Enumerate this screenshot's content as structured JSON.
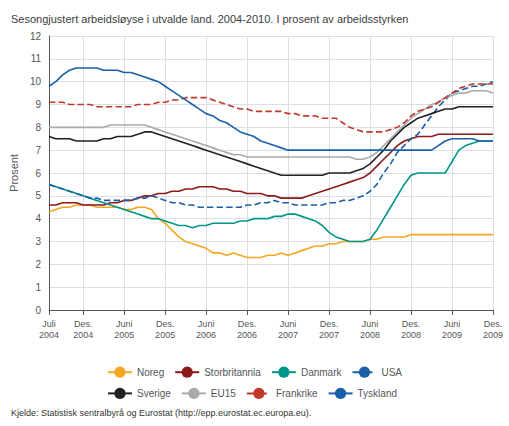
{
  "chart_data": {
    "type": "line",
    "title": "Sesongjustert arbeidsløyse i utvalde land. 2004-2010. I prosent av arbeidsstyrken",
    "y_label": "Prosent",
    "annotations": [
      "Kjelde: Statistisk sentralbyrå og Eurostat (http://epp.eurostat.ec.europa.eu)."
    ],
    "categories": [
      "Juli\n2004",
      null,
      null,
      null,
      null,
      "Des.\n2004",
      null,
      null,
      null,
      null,
      null,
      "Juni\n2005",
      null,
      null,
      null,
      null,
      null,
      "Des.\n2005",
      null,
      null,
      null,
      null,
      null,
      "Juni\n2006",
      null,
      null,
      null,
      null,
      null,
      "Des.\n2006",
      null,
      null,
      null,
      null,
      null,
      "Juni\n2007",
      null,
      null,
      null,
      null,
      null,
      "Des.\n2007",
      null,
      null,
      null,
      null,
      null,
      "Juni\n2008",
      null,
      null,
      null,
      null,
      null,
      "Des.\n2008",
      null,
      null,
      null,
      null,
      null,
      "Juni\n2009",
      null,
      null,
      null,
      null,
      null,
      "Des.\n2009"
    ],
    "ylim": [
      0,
      12
    ],
    "yticks": [
      0,
      1,
      2,
      3,
      4,
      5,
      6,
      7,
      8,
      9,
      10,
      11,
      12
    ],
    "grid": true,
    "legend": "bottom",
    "series": [
      {
        "name": "Noreg",
        "color": "#f5a623",
        "line_style": "solid",
        "values": [
          4.3,
          4.4,
          4.5,
          4.5,
          4.6,
          4.6,
          4.6,
          4.5,
          4.5,
          4.5,
          4.5,
          4.4,
          4.4,
          4.5,
          4.5,
          4.4,
          4.0,
          3.8,
          3.5,
          3.2,
          3.0,
          2.9,
          2.8,
          2.7,
          2.5,
          2.5,
          2.4,
          2.5,
          2.4,
          2.3,
          2.3,
          2.3,
          2.4,
          2.4,
          2.5,
          2.4,
          2.5,
          2.6,
          2.7,
          2.8,
          2.8,
          2.9,
          2.9,
          3.0,
          3.0,
          3.0,
          3.0,
          3.1,
          3.1,
          3.2,
          3.2,
          3.2,
          3.2,
          3.3,
          3.3,
          3.3,
          3.3,
          3.3,
          3.3,
          3.3,
          3.3,
          3.3,
          3.3,
          3.3,
          3.3,
          3.3
        ]
      },
      {
        "name": "Storbritannia",
        "color": "#8B1a1a",
        "line_style": "solid",
        "values": [
          4.6,
          4.6,
          4.7,
          4.7,
          4.7,
          4.6,
          4.6,
          4.6,
          4.6,
          4.7,
          4.7,
          4.8,
          4.8,
          4.9,
          5.0,
          5.0,
          5.1,
          5.1,
          5.2,
          5.2,
          5.3,
          5.3,
          5.4,
          5.4,
          5.4,
          5.3,
          5.3,
          5.2,
          5.2,
          5.1,
          5.1,
          5.1,
          5.0,
          5.0,
          4.9,
          4.9,
          4.9,
          4.9,
          5.0,
          5.1,
          5.2,
          5.3,
          5.4,
          5.5,
          5.6,
          5.7,
          5.8,
          6.0,
          6.3,
          6.6,
          6.9,
          7.2,
          7.4,
          7.5,
          7.6,
          7.6,
          7.6,
          7.7,
          7.7,
          7.7,
          7.7,
          7.7,
          7.7,
          7.7,
          7.7,
          7.7
        ]
      },
      {
        "name": "Danmark",
        "color": "#009688",
        "line_style": "solid",
        "values": [
          5.5,
          5.4,
          5.3,
          5.2,
          5.1,
          5.0,
          4.9,
          4.8,
          4.7,
          4.6,
          4.5,
          4.4,
          4.3,
          4.2,
          4.1,
          4.0,
          4.0,
          3.9,
          3.8,
          3.7,
          3.7,
          3.6,
          3.7,
          3.7,
          3.8,
          3.8,
          3.8,
          3.8,
          3.9,
          3.9,
          4.0,
          4.0,
          4.0,
          4.1,
          4.1,
          4.2,
          4.2,
          4.1,
          4.0,
          3.9,
          3.7,
          3.4,
          3.2,
          3.1,
          3.0,
          3.0,
          3.0,
          3.1,
          3.5,
          4.0,
          4.5,
          5.0,
          5.5,
          5.9,
          6.0,
          6.0,
          6.0,
          6.0,
          6.0,
          6.5,
          7.0,
          7.2,
          7.3,
          7.4,
          7.4,
          7.4
        ]
      },
      {
        "name": "USA",
        "color": "#1a5fa8",
        "line_style": "dashed",
        "values": [
          5.5,
          5.4,
          5.3,
          5.2,
          5.1,
          5.0,
          4.9,
          4.9,
          4.8,
          4.8,
          4.8,
          4.8,
          4.8,
          4.9,
          4.9,
          5.0,
          4.9,
          4.8,
          4.7,
          4.7,
          4.6,
          4.6,
          4.5,
          4.5,
          4.5,
          4.5,
          4.5,
          4.5,
          4.5,
          4.6,
          4.6,
          4.7,
          4.7,
          4.8,
          4.7,
          4.7,
          4.6,
          4.6,
          4.6,
          4.6,
          4.6,
          4.7,
          4.7,
          4.8,
          4.8,
          4.9,
          5.0,
          5.2,
          5.5,
          6.0,
          6.4,
          6.9,
          7.2,
          7.5,
          7.7,
          8.1,
          8.5,
          8.9,
          9.2,
          9.5,
          9.6,
          9.7,
          9.8,
          9.8,
          9.9,
          10.0
        ]
      },
      {
        "name": "Sverige",
        "color": "#222222",
        "line_style": "solid",
        "values": [
          7.6,
          7.5,
          7.5,
          7.5,
          7.4,
          7.4,
          7.4,
          7.4,
          7.5,
          7.5,
          7.6,
          7.6,
          7.6,
          7.7,
          7.8,
          7.8,
          7.7,
          7.6,
          7.5,
          7.4,
          7.3,
          7.2,
          7.1,
          7.0,
          6.9,
          6.8,
          6.7,
          6.6,
          6.5,
          6.4,
          6.3,
          6.2,
          6.1,
          6.0,
          5.9,
          5.9,
          5.9,
          5.9,
          5.9,
          5.9,
          5.9,
          6.0,
          6.0,
          6.0,
          6.0,
          6.1,
          6.2,
          6.4,
          6.7,
          7.0,
          7.4,
          7.7,
          8.0,
          8.2,
          8.4,
          8.5,
          8.6,
          8.7,
          8.8,
          8.8,
          8.9,
          8.9,
          8.9,
          8.9,
          8.9,
          8.9
        ]
      },
      {
        "name": "EU15",
        "color": "#aaaaaa",
        "line_style": "solid",
        "values": [
          8.0,
          8.0,
          8.0,
          8.0,
          8.0,
          8.0,
          8.0,
          8.0,
          8.0,
          8.1,
          8.1,
          8.1,
          8.1,
          8.1,
          8.1,
          8.0,
          7.9,
          7.8,
          7.7,
          7.6,
          7.5,
          7.4,
          7.3,
          7.2,
          7.1,
          7.0,
          6.9,
          6.8,
          6.8,
          6.7,
          6.7,
          6.7,
          6.7,
          6.7,
          6.7,
          6.7,
          6.7,
          6.7,
          6.7,
          6.7,
          6.7,
          6.7,
          6.7,
          6.7,
          6.7,
          6.6,
          6.6,
          6.7,
          6.9,
          7.2,
          7.5,
          7.8,
          8.1,
          8.4,
          8.6,
          8.8,
          9.0,
          9.1,
          9.3,
          9.4,
          9.5,
          9.5,
          9.6,
          9.6,
          9.6,
          9.5
        ]
      },
      {
        "name": "Frankrike",
        "color": "#c0392b",
        "line_style": "dashed",
        "values": [
          9.1,
          9.1,
          9.1,
          9.0,
          9.0,
          9.0,
          9.0,
          8.9,
          8.9,
          8.9,
          8.9,
          8.9,
          8.9,
          9.0,
          9.0,
          9.0,
          9.1,
          9.1,
          9.2,
          9.2,
          9.3,
          9.3,
          9.3,
          9.3,
          9.2,
          9.1,
          9.0,
          8.9,
          8.8,
          8.8,
          8.7,
          8.7,
          8.7,
          8.7,
          8.7,
          8.6,
          8.6,
          8.5,
          8.5,
          8.5,
          8.4,
          8.4,
          8.4,
          8.2,
          8.0,
          7.9,
          7.8,
          7.8,
          7.8,
          7.8,
          7.9,
          8.0,
          8.2,
          8.5,
          8.7,
          8.8,
          8.9,
          9.1,
          9.3,
          9.5,
          9.7,
          9.8,
          9.9,
          9.9,
          9.9,
          9.9
        ]
      },
      {
        "name": "Tyskland",
        "color": "#1a5fa8",
        "line_style": "solid",
        "values": [
          9.8,
          10.0,
          10.3,
          10.5,
          10.6,
          10.6,
          10.6,
          10.6,
          10.5,
          10.5,
          10.5,
          10.4,
          10.4,
          10.3,
          10.2,
          10.1,
          10.0,
          9.8,
          9.6,
          9.4,
          9.2,
          9.0,
          8.8,
          8.6,
          8.5,
          8.3,
          8.2,
          8.0,
          7.8,
          7.7,
          7.6,
          7.4,
          7.3,
          7.2,
          7.1,
          7.0,
          7.0,
          7.0,
          7.0,
          7.0,
          7.0,
          7.0,
          7.0,
          7.0,
          7.0,
          7.0,
          7.0,
          7.0,
          7.0,
          7.0,
          7.0,
          7.0,
          7.0,
          7.0,
          7.0,
          7.0,
          7.0,
          7.2,
          7.4,
          7.5,
          7.5,
          7.5,
          7.5,
          7.4,
          7.4,
          7.4
        ]
      }
    ]
  }
}
